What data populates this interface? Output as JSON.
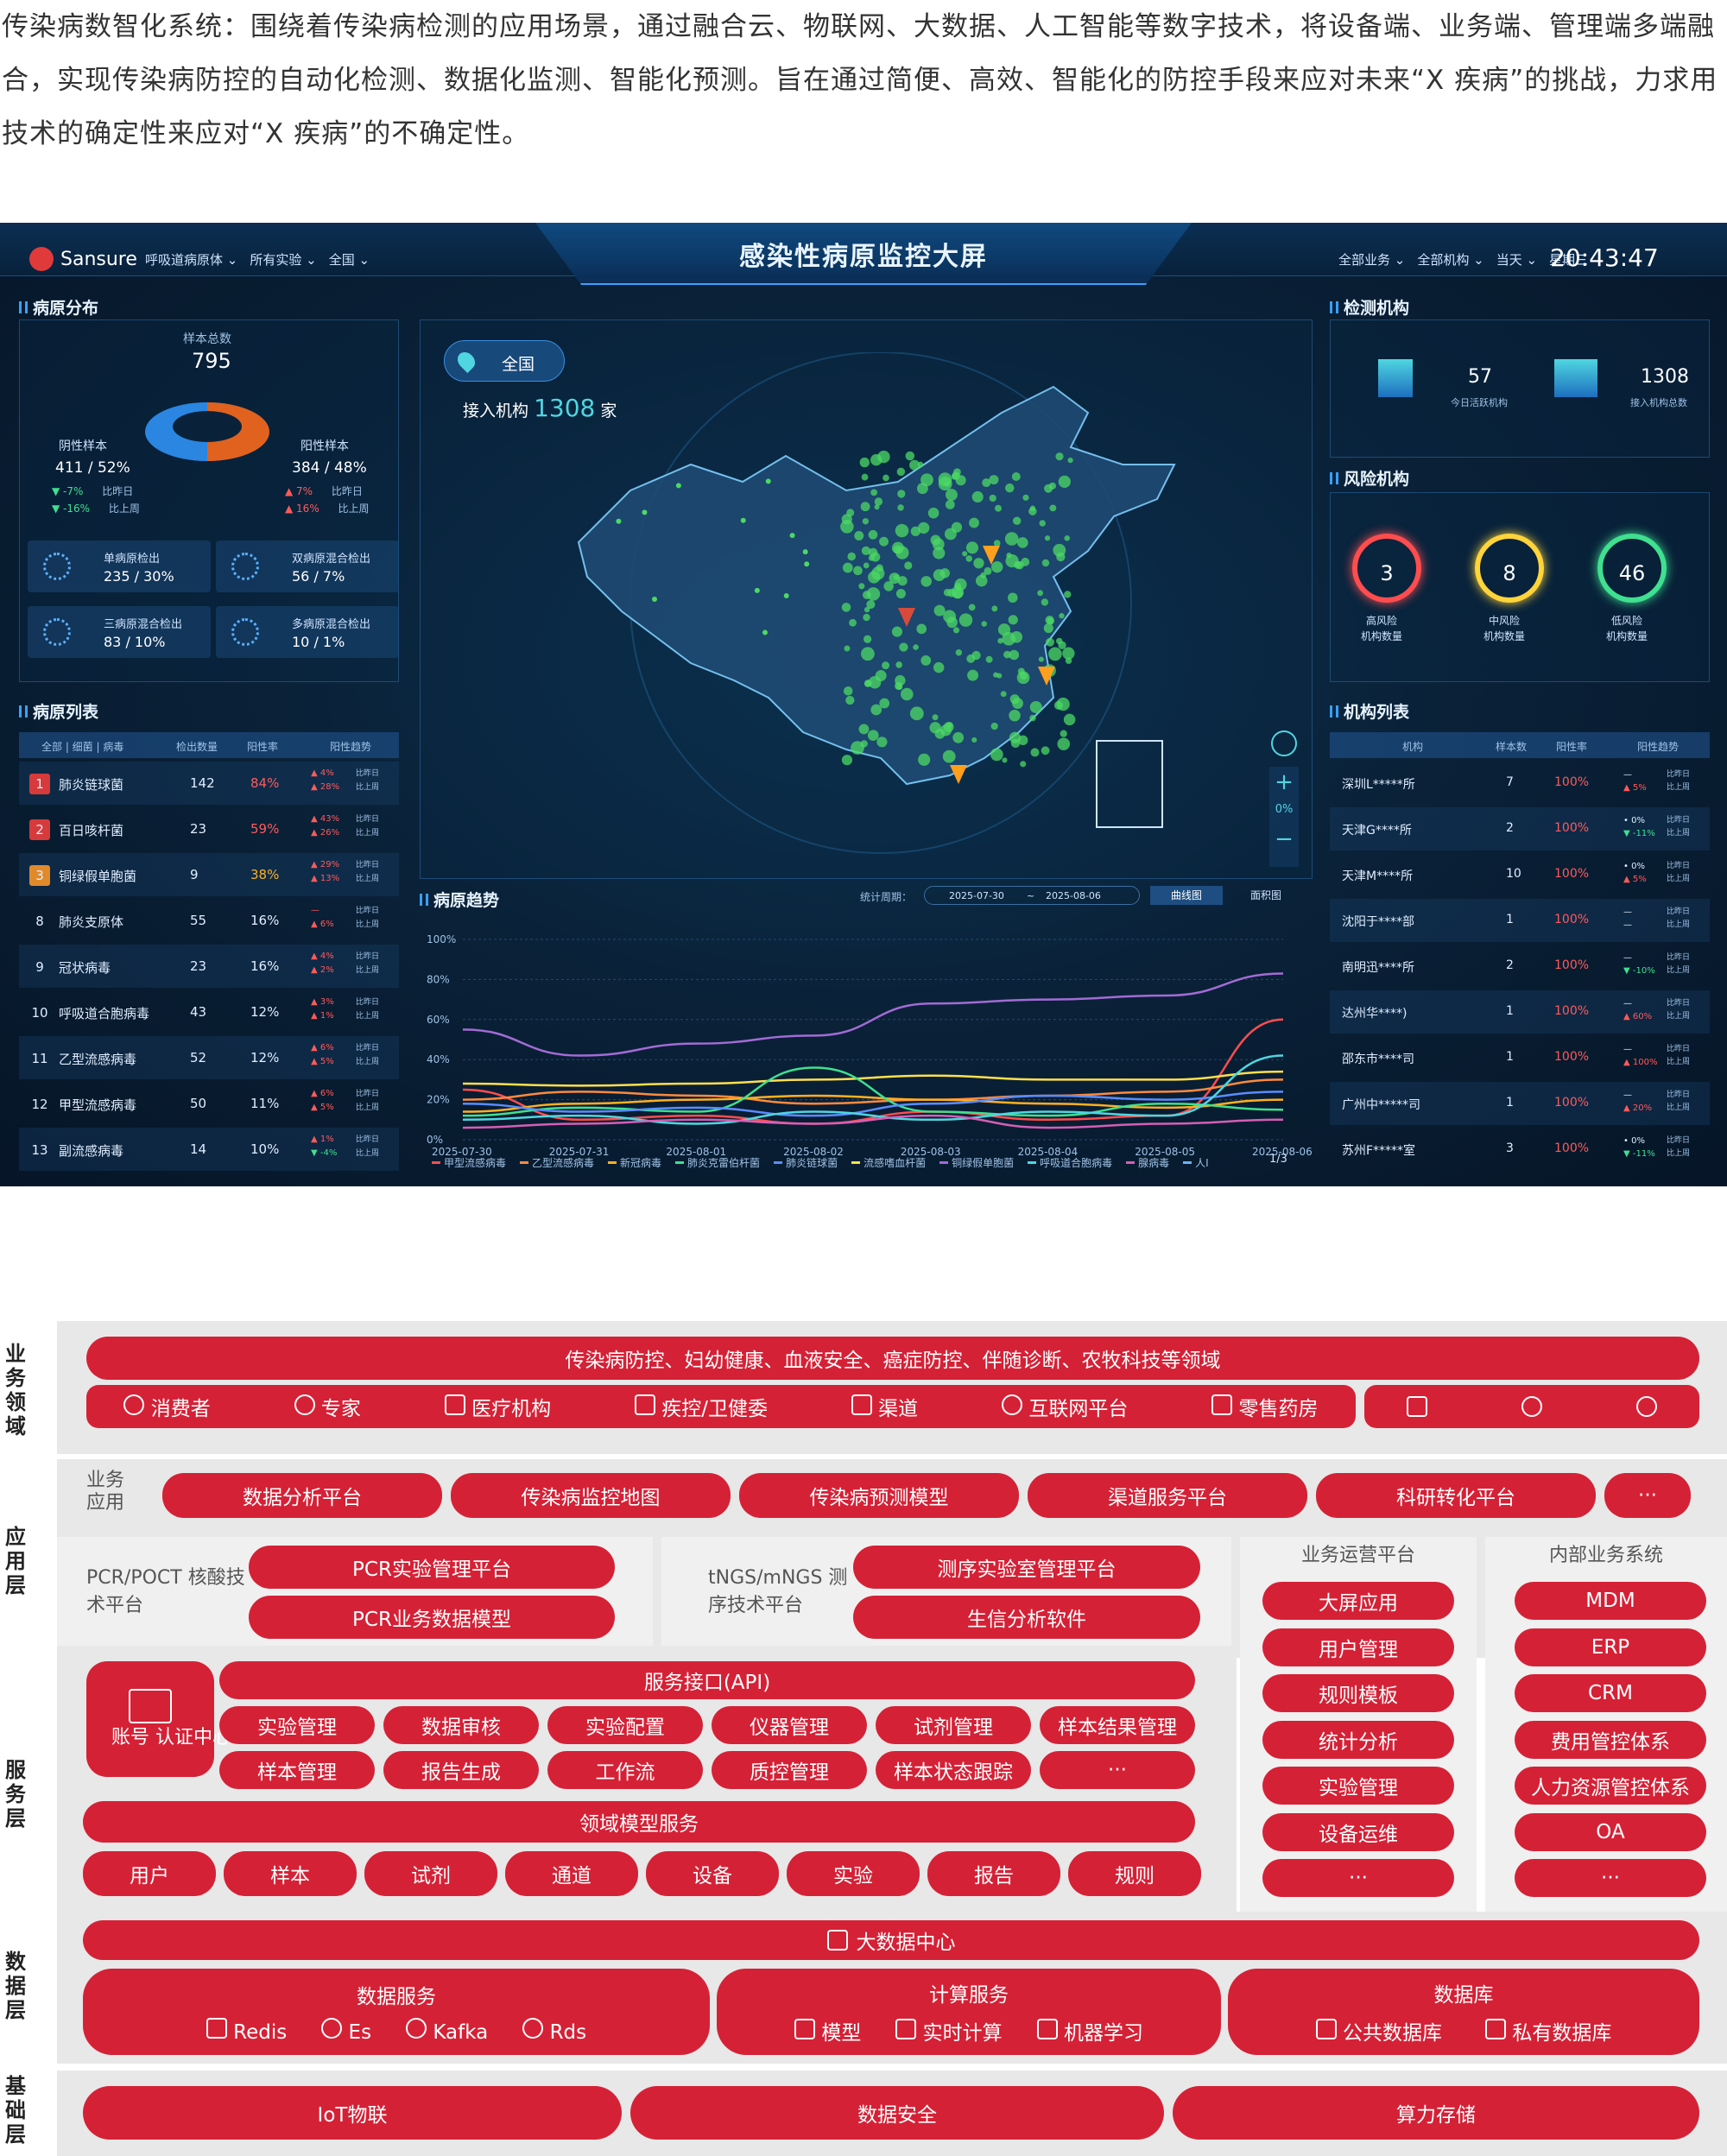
{
  "intro": "传染病数智化系统：围绕着传染病检测的应用场景，通过融合云、物联网、大数据、人工智能等数字技术，将设备端、业务端、管理端多端融合，实现传染病防控的自动化检测、数据化监测、智能化预测。旨在通过简便、高效、智能化的防控手段来应对未来“X 疾病”的挑战，力求用技术的确定性来应对“X 疾病”的不确定性。",
  "dash": {
    "brand": "Sansure",
    "title": "感染性病原监控大屏",
    "filters_left": [
      "呼吸道病原体 ⌄",
      "所有实验 ⌄",
      "全国 ⌄"
    ],
    "filters_right": [
      "全部业务 ⌄",
      "全部机构 ⌄",
      "当天 ⌄",
      "星期三"
    ],
    "time": "20:43:47",
    "pathogen_dist": {
      "title": "病原分布",
      "total_label": "样本总数",
      "total": "795",
      "neg_label": "阴性样本",
      "neg_val": "411 / 52%",
      "neg_day": "-7%",
      "neg_day_label": "比昨日",
      "neg_mon": "-16%",
      "neg_mon_label": "比上周",
      "pos_label": "阳性样本",
      "pos_val": "384 / 48%",
      "pos_day": "7%",
      "pos_day_label": "比昨日",
      "pos_mon": "16%",
      "pos_mon_label": "比上周",
      "neg_fraction": 0.52,
      "cards": [
        {
          "label": "单病原检出",
          "value": "235 / 30%"
        },
        {
          "label": "双病原混合检出",
          "value": "56 / 7%"
        },
        {
          "label": "三病原混合检出",
          "value": "83 / 10%"
        },
        {
          "label": "多病原混合检出",
          "value": "10 / 1%"
        }
      ]
    },
    "pathogen_list": {
      "title": "病原列表",
      "tabs": "全部 | 细菌 | 病毒",
      "h_count": "检出数量",
      "h_rate": "阳性率",
      "h_trend": "阳性趋势",
      "rows": [
        {
          "rank": "1",
          "name": "肺炎链球菌",
          "count": "142",
          "rate": "84%",
          "t1": "▲ 4%",
          "t2": "▲ 28%",
          "l1": "比昨日",
          "l2": "比上周"
        },
        {
          "rank": "2",
          "name": "百日咳杆菌",
          "count": "23",
          "rate": "59%",
          "t1": "▲ 43%",
          "t2": "▲ 26%",
          "l1": "比昨日",
          "l2": "比上周"
        },
        {
          "rank": "3",
          "name": "铜绿假单胞菌",
          "count": "9",
          "rate": "38%",
          "t1": "▲ 29%",
          "t2": "▲ 13%",
          "l1": "比昨日",
          "l2": "比上周"
        },
        {
          "rank": "8",
          "name": "肺炎支原体",
          "count": "55",
          "rate": "16%",
          "t1": "—",
          "t2": "▲ 6%",
          "l1": "比昨日",
          "l2": "比上周"
        },
        {
          "rank": "9",
          "name": "冠状病毒",
          "count": "23",
          "rate": "16%",
          "t1": "▲ 4%",
          "t2": "▲ 2%",
          "l1": "比昨日",
          "l2": "比上周"
        },
        {
          "rank": "10",
          "name": "呼吸道合胞病毒",
          "count": "43",
          "rate": "12%",
          "t1": "▲ 3%",
          "t2": "▲ 1%",
          "l1": "比昨日",
          "l2": "比上周"
        },
        {
          "rank": "11",
          "name": "乙型流感病毒",
          "count": "52",
          "rate": "12%",
          "t1": "▲ 6%",
          "t2": "▲ 5%",
          "l1": "比昨日",
          "l2": "比上周"
        },
        {
          "rank": "12",
          "name": "甲型流感病毒",
          "count": "50",
          "rate": "11%",
          "t1": "▲ 6%",
          "t2": "▲ 5%",
          "l1": "比昨日",
          "l2": "比上周"
        },
        {
          "rank": "13",
          "name": "副流感病毒",
          "count": "14",
          "rate": "10%",
          "t1": "▲ 1%",
          "t2": "▼ -4%",
          "l1": "比昨日",
          "l2": "比上周"
        }
      ]
    },
    "map": {
      "region": "全国",
      "connected_label": "接入机构",
      "connected": "1308",
      "unit": "家",
      "zoom": "0%"
    },
    "trend": {
      "title": "病原趋势",
      "period_label": "统计周期：",
      "from": "2025-07-30",
      "to": "2025-08-06",
      "tilde": "~",
      "btn_line": "曲线图",
      "btn_area": "面积图",
      "page": "1/3",
      "legend": [
        "甲型流感病毒",
        "乙型流感病毒",
        "新冠病毒",
        "肺炎克雷伯杆菌",
        "肺炎链球菌",
        "流感嗜血杆菌",
        "铜绿假单胞菌",
        "呼吸道合胞病毒",
        "腺病毒",
        "人I"
      ]
    },
    "chart_data": {
      "type": "line",
      "x": [
        "2025-07-30",
        "2025-07-31",
        "2025-08-01",
        "2025-08-02",
        "2025-08-03",
        "2025-08-04",
        "2025-08-05",
        "2025-08-06"
      ],
      "yticks": [
        "100%",
        "80%",
        "60%",
        "40%",
        "20%",
        "0%"
      ],
      "ylim": [
        0,
        100
      ],
      "series": [
        {
          "name": "铜绿假单胞菌",
          "color": "#a36bd6",
          "values": [
            55,
            42,
            48,
            52,
            68,
            70,
            72,
            83
          ]
        },
        {
          "name": "甲型流感病毒",
          "color": "#ff4d4f",
          "values": [
            25,
            10,
            12,
            8,
            14,
            10,
            12,
            60
          ]
        },
        {
          "name": "流感嗜血杆菌",
          "color": "#ffe04d",
          "values": [
            28,
            27,
            28,
            30,
            32,
            30,
            30,
            34
          ]
        },
        {
          "name": "乙型流感病毒",
          "color": "#ff8a3d",
          "values": [
            20,
            24,
            22,
            18,
            20,
            22,
            24,
            30
          ]
        },
        {
          "name": "新冠病毒",
          "color": "#ffb020",
          "values": [
            14,
            18,
            20,
            22,
            20,
            18,
            16,
            20
          ]
        },
        {
          "name": "肺炎克雷伯杆菌",
          "color": "#3fe08f",
          "values": [
            12,
            16,
            14,
            36,
            14,
            12,
            18,
            15
          ]
        },
        {
          "name": "肺炎链球菌",
          "color": "#5b8cff",
          "values": [
            18,
            14,
            16,
            12,
            18,
            22,
            20,
            24
          ]
        },
        {
          "name": "呼吸道合胞病毒",
          "color": "#4fd6e0",
          "values": [
            10,
            12,
            8,
            14,
            10,
            14,
            12,
            42
          ]
        },
        {
          "name": "腺病毒",
          "color": "#d45fb5",
          "values": [
            6,
            8,
            10,
            8,
            12,
            6,
            8,
            10
          ]
        }
      ]
    },
    "inst": {
      "title": "检测机构",
      "active": "57",
      "active_label": "今日活跃机构",
      "total": "1308",
      "total_label": "接入机构总数"
    },
    "risk": {
      "title": "风险机构",
      "items": [
        {
          "v": "3",
          "l1": "高风险",
          "l2": "机构数量",
          "c": "#ff4d4f"
        },
        {
          "v": "8",
          "l1": "中风险",
          "l2": "机构数量",
          "c": "#ffd43b"
        },
        {
          "v": "46",
          "l1": "低风险",
          "l2": "机构数量",
          "c": "#3fe08f"
        }
      ]
    },
    "inst_list": {
      "title": "机构列表",
      "h_name": "机构",
      "h_count": "样本数",
      "h_rate": "阳性率",
      "h_trend": "阳性趋势",
      "rows": [
        {
          "name": "深圳L*****所",
          "count": "7",
          "rate": "100%",
          "t1": "—",
          "t2": "▲ 5%"
        },
        {
          "name": "天津G****所",
          "count": "2",
          "rate": "100%",
          "t1": "• 0%",
          "t2": "▼ -11%"
        },
        {
          "name": "天津M****所",
          "count": "10",
          "rate": "100%",
          "t1": "• 0%",
          "t2": "▲ 5%"
        },
        {
          "name": "沈阳于****部",
          "count": "1",
          "rate": "100%",
          "t1": "—",
          "t2": "—"
        },
        {
          "name": "南明迅****所",
          "count": "2",
          "rate": "100%",
          "t1": "—",
          "t2": "▼ -10%"
        },
        {
          "name": "达州华****)",
          "count": "1",
          "rate": "100%",
          "t1": "—",
          "t2": "▲ 60%"
        },
        {
          "name": "邵东市****司",
          "count": "1",
          "rate": "100%",
          "t1": "—",
          "t2": "▲ 100%"
        },
        {
          "name": "广州中*****司",
          "count": "1",
          "rate": "100%",
          "t1": "—",
          "t2": "▲ 20%"
        },
        {
          "name": "苏州F*****室",
          "count": "3",
          "rate": "100%",
          "t1": "• 0%",
          "t2": "▼ -11%"
        }
      ],
      "l1": "比昨日",
      "l2": "比上周"
    }
  },
  "arch": {
    "l_biz": "业务领域",
    "l_app": "应用层",
    "l_svc": "服务层",
    "l_data": "数据层",
    "l_base": "基础层",
    "domains": "传染病防控、妇幼健康、血液安全、癌症防控、伴随诊断、农牧科技等领域",
    "users": [
      "消费者",
      "专家",
      "医疗机构",
      "疾控/卫健委",
      "渠道",
      "互联网平台",
      "零售药房"
    ],
    "biz_app_label": "业务应用",
    "apps": [
      "数据分析平台",
      "传染病监控地图",
      "传染病预测模型",
      "渠道服务平台",
      "科研转化平台",
      "···"
    ],
    "pcr_label": "PCR/POCT 核酸技术平台",
    "pcr": [
      "PCR实验管理平台",
      "PCR业务数据模型"
    ],
    "ngs_label": "tNGS/mNGS 测序技术平台",
    "ngs": [
      "测序实验室管理平台",
      "生信分析软件"
    ],
    "ops_label": "业务运营平台",
    "ops": [
      "大屏应用",
      "用户管理",
      "规则模板",
      "统计分析",
      "实验管理",
      "设备运维",
      "···"
    ],
    "int_label": "内部业务系统",
    "int": [
      "MDM",
      "ERP",
      "CRM",
      "费用管控体系",
      "人力资源管控体系",
      "OA",
      "···"
    ],
    "account": "账号 认证中心",
    "api": "服务接口(API)",
    "svc1": [
      "实验管理",
      "数据审核",
      "实验配置",
      "仪器管理",
      "试剂管理",
      "样本结果管理"
    ],
    "svc2": [
      "样本管理",
      "报告生成",
      "工作流",
      "质控管理",
      "样本状态跟踪",
      "···"
    ],
    "domain_model": "领域模型服务",
    "entities": [
      "用户",
      "样本",
      "试剂",
      "通道",
      "设备",
      "实验",
      "报告",
      "规则"
    ],
    "bigdata": "大数据中心",
    "data_svc": "数据服务",
    "data_svc_items": [
      "Redis",
      "Es",
      "Kafka",
      "Rds"
    ],
    "compute": "计算服务",
    "compute_items": [
      "模型",
      "实时计算",
      "机器学习"
    ],
    "db": "数据库",
    "db_items": [
      "公共数据库",
      "私有数据库"
    ],
    "base": [
      "IoT物联",
      "数据安全",
      "算力存储"
    ]
  }
}
